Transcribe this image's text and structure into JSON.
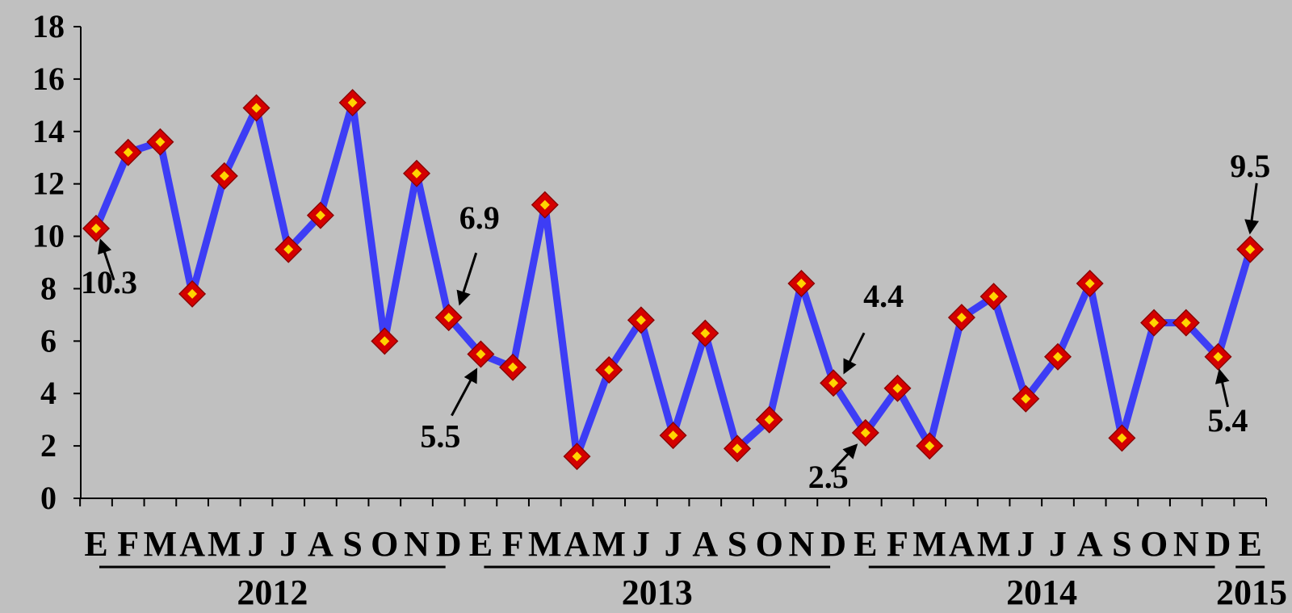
{
  "chart_data": {
    "type": "line",
    "title": "",
    "xlabel": "",
    "ylabel": "",
    "ylim": [
      0,
      18
    ],
    "yticks": [
      0,
      2,
      4,
      6,
      8,
      10,
      12,
      14,
      16,
      18
    ],
    "grid": false,
    "legend": "none",
    "colors": {
      "line": "#3d3df5",
      "marker_outer": "#d40000",
      "marker_inner": "#ffd400",
      "background": "#c0c0c0"
    },
    "categories": [
      "E",
      "F",
      "M",
      "A",
      "M",
      "J",
      "J",
      "A",
      "S",
      "O",
      "N",
      "D",
      "E",
      "F",
      "M",
      "A",
      "M",
      "J",
      "J",
      "A",
      "S",
      "O",
      "N",
      "D",
      "E",
      "F",
      "M",
      "A",
      "M",
      "J",
      "J",
      "A",
      "S",
      "O",
      "N",
      "D",
      "E"
    ],
    "years": [
      {
        "label": "2012",
        "start": 0,
        "end": 11
      },
      {
        "label": "2013",
        "start": 12,
        "end": 23
      },
      {
        "label": "2014",
        "start": 24,
        "end": 35
      },
      {
        "label": "2015",
        "start": 36,
        "end": 36
      }
    ],
    "series": [
      {
        "values": [
          10.3,
          13.2,
          13.6,
          7.8,
          12.3,
          14.9,
          9.5,
          10.8,
          15.1,
          6.0,
          12.4,
          6.9,
          5.5,
          5.0,
          11.2,
          1.6,
          4.9,
          6.8,
          2.4,
          6.3,
          1.9,
          3.0,
          8.2,
          4.4,
          2.5,
          4.2,
          2.0,
          6.9,
          7.7,
          3.8,
          5.4,
          8.2,
          2.3,
          6.7,
          6.7,
          5.4,
          9.5
        ]
      }
    ],
    "annotations": [
      {
        "index": 0,
        "text": "10.3",
        "pos": "below"
      },
      {
        "index": 11,
        "text": "6.9",
        "pos": "above"
      },
      {
        "index": 12,
        "text": "5.5",
        "pos": "below"
      },
      {
        "index": 23,
        "text": "4.4",
        "pos": "above"
      },
      {
        "index": 24,
        "text": "2.5",
        "pos": "below"
      },
      {
        "index": 35,
        "text": "5.4",
        "pos": "below"
      },
      {
        "index": 36,
        "text": "9.5",
        "pos": "above"
      }
    ]
  }
}
